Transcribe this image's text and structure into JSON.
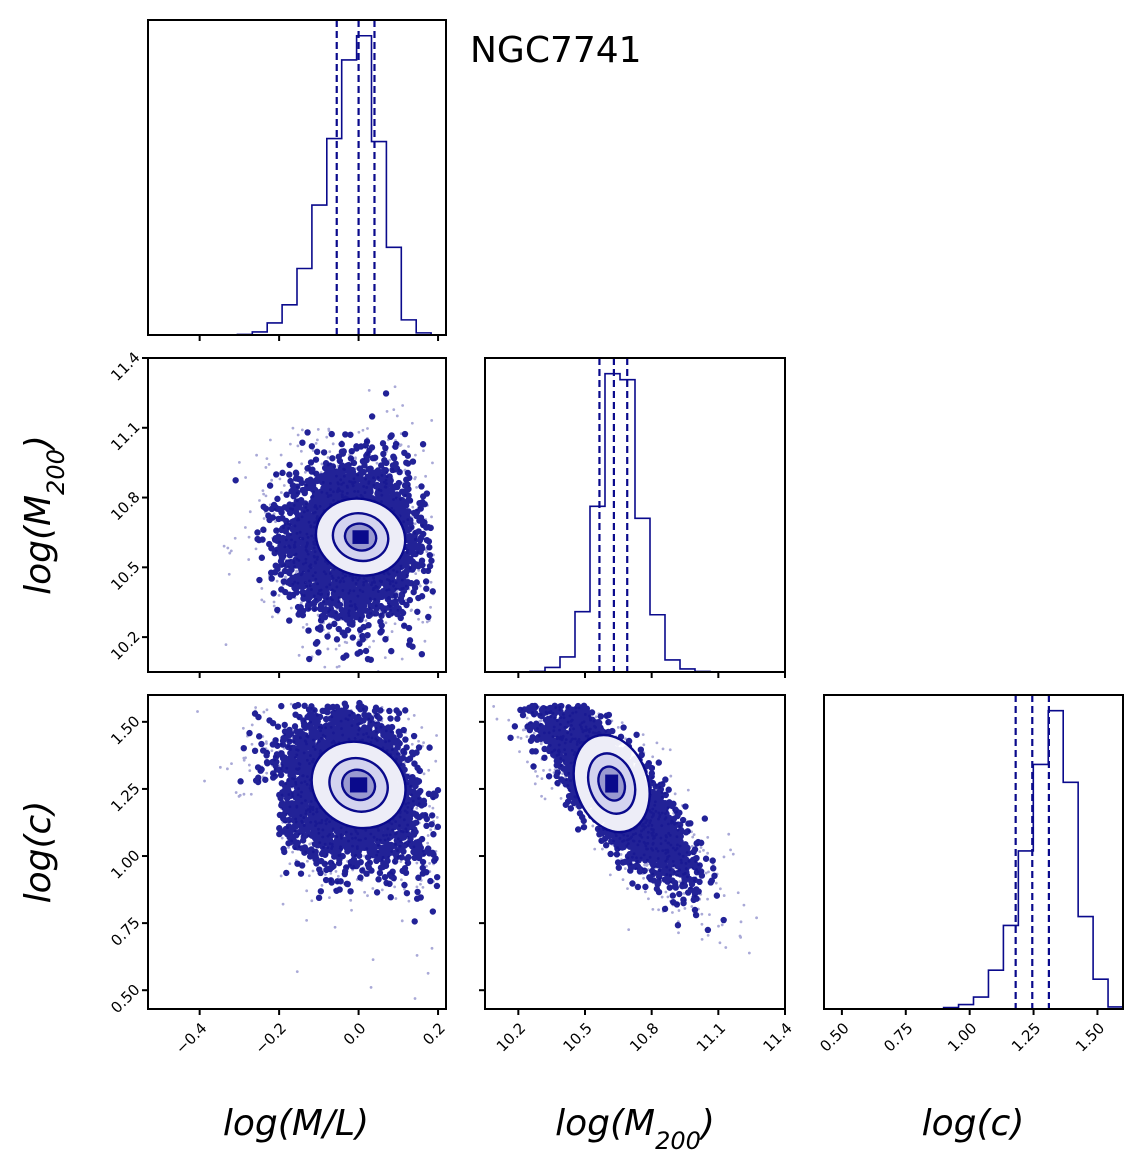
{
  "chart_data": {
    "type": "corner",
    "title": "NGC7741",
    "colors": {
      "main": "#0a0a8c",
      "frame": "#000000",
      "background": "#ffffff"
    },
    "parameters": [
      {
        "key": "logML",
        "label": "log(M/L)",
        "range": [
          -0.53,
          0.22
        ],
        "ticks": [
          -0.4,
          -0.2,
          0.0,
          0.2
        ],
        "tick_labels": [
          "−0.4",
          "−0.2",
          "0.0",
          "0.2"
        ]
      },
      {
        "key": "logM200",
        "label_main": "log(M",
        "label_sub": "200",
        "label_end": ")",
        "range": [
          10.05,
          11.4
        ],
        "ticks": [
          10.2,
          10.5,
          10.8,
          11.1,
          11.4
        ],
        "tick_labels": [
          "10.2",
          "10.5",
          "10.8",
          "11.1",
          "11.4"
        ]
      },
      {
        "key": "logc",
        "label": "log(c)",
        "range": [
          0.43,
          1.6
        ],
        "ticks": [
          0.5,
          0.75,
          1.0,
          1.25,
          1.5
        ],
        "tick_labels": [
          "0.50",
          "0.75",
          "1.00",
          "1.25",
          "1.50"
        ]
      }
    ],
    "histograms": [
      {
        "param": "logML",
        "edges_start": -0.53,
        "bin_width": 0.0375,
        "counts": [
          0,
          0,
          0,
          0,
          0,
          0,
          0.002,
          0.01,
          0.04,
          0.1,
          0.22,
          0.43,
          0.65,
          0.91,
          0.99,
          0.64,
          0.29,
          0.05,
          0.007,
          0
        ],
        "quantiles": [
          -0.055,
          0.0,
          0.04
        ]
      },
      {
        "param": "logM200",
        "edges_start": 10.05,
        "bin_width": 0.0675,
        "counts": [
          0,
          0,
          0,
          0.002,
          0.015,
          0.05,
          0.2,
          0.55,
          0.99,
          0.97,
          0.51,
          0.19,
          0.04,
          0.01,
          0.002,
          0,
          0,
          0,
          0,
          0
        ],
        "quantiles": [
          10.565,
          10.63,
          10.69
        ]
      },
      {
        "param": "logc",
        "edges_start": 0.43,
        "bin_width": 0.0585,
        "counts": [
          0,
          0,
          0,
          0,
          0,
          0,
          0,
          0,
          0.005,
          0.015,
          0.04,
          0.13,
          0.28,
          0.53,
          0.82,
          1.0,
          0.76,
          0.31,
          0.1,
          0.007
        ],
        "quantiles": [
          1.18,
          1.245,
          1.31
        ]
      }
    ],
    "scatter_2d": [
      {
        "x": "logML",
        "y": "logM200",
        "kde_center": [
          0.005,
          10.63
        ]
      },
      {
        "x": "logML",
        "y": "logc",
        "kde_center": [
          0.0,
          1.265
        ]
      },
      {
        "x": "logM200",
        "y": "logc",
        "kde_center": [
          10.62,
          1.27
        ]
      }
    ]
  }
}
